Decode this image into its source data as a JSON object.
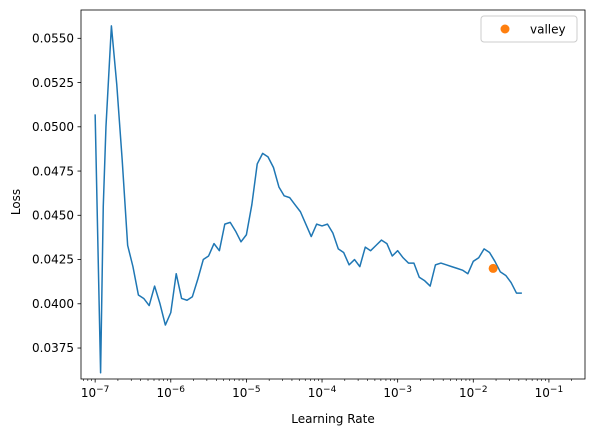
{
  "chart_data": {
    "type": "line",
    "title": "",
    "xlabel": "Learning Rate",
    "ylabel": "Loss",
    "xscale": "log",
    "xlim": [
      6.5e-08,
      0.3
    ],
    "ylim": [
      0.03575,
      0.0566
    ],
    "grid": false,
    "legend": {
      "placement": "top-right",
      "entries": [
        "valley"
      ]
    },
    "x_ticks": [
      {
        "value": 1e-07,
        "exp": "−7"
      },
      {
        "value": 1e-06,
        "exp": "−6"
      },
      {
        "value": 1e-05,
        "exp": "−5"
      },
      {
        "value": 0.0001,
        "exp": "−4"
      },
      {
        "value": 0.001,
        "exp": "−3"
      },
      {
        "value": 0.01,
        "exp": "−2"
      },
      {
        "value": 0.1,
        "exp": "−1"
      }
    ],
    "x_tick_base": "10",
    "y_ticks": [
      {
        "value": 0.0375,
        "label": "0.0375"
      },
      {
        "value": 0.04,
        "label": "0.0400"
      },
      {
        "value": 0.0425,
        "label": "0.0425"
      },
      {
        "value": 0.045,
        "label": "0.0450"
      },
      {
        "value": 0.0475,
        "label": "0.0475"
      },
      {
        "value": 0.05,
        "label": "0.0500"
      },
      {
        "value": 0.0525,
        "label": "0.0525"
      },
      {
        "value": 0.055,
        "label": "0.0550"
      }
    ],
    "series": [
      {
        "type": "line",
        "color": "#1f77b4",
        "points": [
          [
            1e-07,
            0.0507
          ],
          [
            1.18e-07,
            0.0361
          ],
          [
            1.28e-07,
            0.0455
          ],
          [
            1.39e-07,
            0.05
          ],
          [
            1.64e-07,
            0.0557
          ],
          [
            1.93e-07,
            0.0524
          ],
          [
            2.28e-07,
            0.0481
          ],
          [
            2.69e-07,
            0.0433
          ],
          [
            3.16e-07,
            0.0421
          ],
          [
            3.73e-07,
            0.0405
          ],
          [
            4.39e-07,
            0.0403
          ],
          [
            5.18e-07,
            0.0399
          ],
          [
            6.11e-07,
            0.041
          ],
          [
            7.2e-07,
            0.04
          ],
          [
            8.48e-07,
            0.0388
          ],
          [
            1e-06,
            0.0395
          ],
          [
            1.18e-06,
            0.0417
          ],
          [
            1.39e-06,
            0.0403
          ],
          [
            1.64e-06,
            0.0402
          ],
          [
            1.93e-06,
            0.0404
          ],
          [
            2.28e-06,
            0.0414
          ],
          [
            2.69e-06,
            0.0425
          ],
          [
            3.16e-06,
            0.0427
          ],
          [
            3.73e-06,
            0.0434
          ],
          [
            4.39e-06,
            0.043
          ],
          [
            5.18e-06,
            0.0445
          ],
          [
            6.11e-06,
            0.0446
          ],
          [
            7.2e-06,
            0.0441
          ],
          [
            8.48e-06,
            0.0435
          ],
          [
            1e-05,
            0.0439
          ],
          [
            1.18e-05,
            0.0456
          ],
          [
            1.39e-05,
            0.0479
          ],
          [
            1.64e-05,
            0.0485
          ],
          [
            1.93e-05,
            0.0483
          ],
          [
            2.28e-05,
            0.0477
          ],
          [
            2.69e-05,
            0.0466
          ],
          [
            3.16e-05,
            0.0461
          ],
          [
            3.73e-05,
            0.046
          ],
          [
            4.39e-05,
            0.0456
          ],
          [
            5.18e-05,
            0.0452
          ],
          [
            6.11e-05,
            0.0445
          ],
          [
            7.2e-05,
            0.0438
          ],
          [
            8.48e-05,
            0.0445
          ],
          [
            0.0001,
            0.0444
          ],
          [
            0.000118,
            0.0445
          ],
          [
            0.000139,
            0.044
          ],
          [
            0.000164,
            0.0431
          ],
          [
            0.000193,
            0.0429
          ],
          [
            0.000228,
            0.0422
          ],
          [
            0.000269,
            0.0425
          ],
          [
            0.000316,
            0.0421
          ],
          [
            0.000373,
            0.0432
          ],
          [
            0.000439,
            0.043
          ],
          [
            0.000518,
            0.0433
          ],
          [
            0.000611,
            0.0436
          ],
          [
            0.00072,
            0.0434
          ],
          [
            0.000848,
            0.0427
          ],
          [
            0.001,
            0.043
          ],
          [
            0.00118,
            0.0426
          ],
          [
            0.00139,
            0.0423
          ],
          [
            0.00164,
            0.0423
          ],
          [
            0.00193,
            0.0415
          ],
          [
            0.00228,
            0.0413
          ],
          [
            0.00269,
            0.041
          ],
          [
            0.00316,
            0.0422
          ],
          [
            0.00373,
            0.0423
          ],
          [
            0.00439,
            0.0422
          ],
          [
            0.00518,
            0.0421
          ],
          [
            0.00611,
            0.042
          ],
          [
            0.0072,
            0.0419
          ],
          [
            0.00848,
            0.0417
          ],
          [
            0.01,
            0.0424
          ],
          [
            0.0118,
            0.0426
          ],
          [
            0.0139,
            0.0431
          ],
          [
            0.0164,
            0.0429
          ],
          [
            0.0193,
            0.0424
          ],
          [
            0.0228,
            0.0418
          ],
          [
            0.0269,
            0.0416
          ],
          [
            0.0316,
            0.0412
          ],
          [
            0.0373,
            0.0406
          ],
          [
            0.0439,
            0.0406
          ]
        ]
      },
      {
        "type": "scatter",
        "name": "valley",
        "color": "#ff7f0e",
        "points": [
          [
            0.0183,
            0.042
          ]
        ]
      }
    ]
  }
}
